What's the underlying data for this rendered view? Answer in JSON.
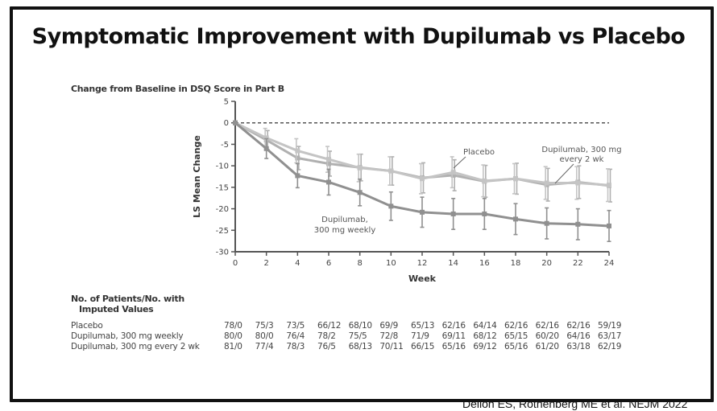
{
  "slide": {
    "title": "Symptomatic Improvement with Dupilumab vs Placebo",
    "citation": "Dellon ES, Rothenberg ME et al. NEJM 2022"
  },
  "chart_data": {
    "type": "line",
    "title": "Change from Baseline in DSQ Score in Part B",
    "xlabel": "Week",
    "ylabel": "LS Mean Change",
    "xlim": [
      0,
      24
    ],
    "ylim": [
      -30,
      5
    ],
    "x": [
      0,
      2,
      4,
      6,
      8,
      10,
      12,
      14,
      16,
      18,
      20,
      22,
      24
    ],
    "x_ticks": [
      "0",
      "2",
      "4",
      "6",
      "8",
      "10",
      "12",
      "14",
      "16",
      "18",
      "20",
      "22",
      "24"
    ],
    "y_ticks": [
      "5",
      "0",
      "-5",
      "-10",
      "-15",
      "-20",
      "-25",
      "-30"
    ],
    "y_tick_values": [
      5,
      0,
      -5,
      -10,
      -15,
      -20,
      -25,
      -30
    ],
    "reference_line": 0,
    "series": [
      {
        "name": "Placebo",
        "color": "#c4c4c4",
        "values": [
          0,
          -3.5,
          -6.5,
          -8.5,
          -10.5,
          -11.2,
          -13.0,
          -11.5,
          -13.5,
          -13.0,
          -14.0,
          -14.0,
          -14.5
        ],
        "error": [
          0,
          2.2,
          2.8,
          3.0,
          3.2,
          3.3,
          3.5,
          3.6,
          3.7,
          3.5,
          3.8,
          3.8,
          3.8
        ]
      },
      {
        "name": "Dupilumab, 300 mg weekly",
        "color": "#909090",
        "values": [
          0,
          -6.0,
          -12.3,
          -13.8,
          -16.2,
          -19.4,
          -20.8,
          -21.2,
          -21.2,
          -22.4,
          -23.4,
          -23.6,
          -24.0
        ],
        "error": [
          0,
          2.3,
          2.8,
          3.0,
          3.1,
          3.3,
          3.5,
          3.6,
          3.6,
          3.6,
          3.6,
          3.6,
          3.6
        ]
      },
      {
        "name": "Dupilumab, 300 mg every 2 wk",
        "color": "#b0b0b0",
        "values": [
          0,
          -4.0,
          -8.2,
          -9.5,
          -10.4,
          -11.2,
          -12.8,
          -12.2,
          -13.6,
          -13.0,
          -14.4,
          -13.8,
          -14.6
        ],
        "error": [
          0,
          2.2,
          2.7,
          2.9,
          3.1,
          3.3,
          3.5,
          3.6,
          3.7,
          3.6,
          3.8,
          3.8,
          3.8
        ]
      }
    ],
    "annotations": [
      {
        "text": "Placebo",
        "series": 0
      },
      {
        "text": "Dupilumab, 300 mg",
        "text2": "every 2 wk",
        "series": 2
      },
      {
        "text": "Dupilumab,",
        "text2": "300 mg weekly",
        "series": 1
      }
    ]
  },
  "table": {
    "header_line1": "No. of Patients/No. with",
    "header_line2": "Imputed Values",
    "rows": [
      {
        "label": "Placebo",
        "values": [
          "78/0",
          "75/3",
          "73/5",
          "66/12",
          "68/10",
          "69/9",
          "65/13",
          "62/16",
          "64/14",
          "62/16",
          "62/16",
          "62/16",
          "59/19"
        ]
      },
      {
        "label": "Dupilumab, 300 mg weekly",
        "values": [
          "80/0",
          "80/0",
          "76/4",
          "78/2",
          "75/5",
          "72/8",
          "71/9",
          "69/11",
          "68/12",
          "65/15",
          "60/20",
          "64/16",
          "63/17"
        ]
      },
      {
        "label": "Dupilumab, 300 mg every 2 wk",
        "values": [
          "81/0",
          "77/4",
          "78/3",
          "76/5",
          "68/13",
          "70/11",
          "66/15",
          "65/16",
          "69/12",
          "65/16",
          "61/20",
          "63/18",
          "62/19"
        ]
      }
    ]
  }
}
